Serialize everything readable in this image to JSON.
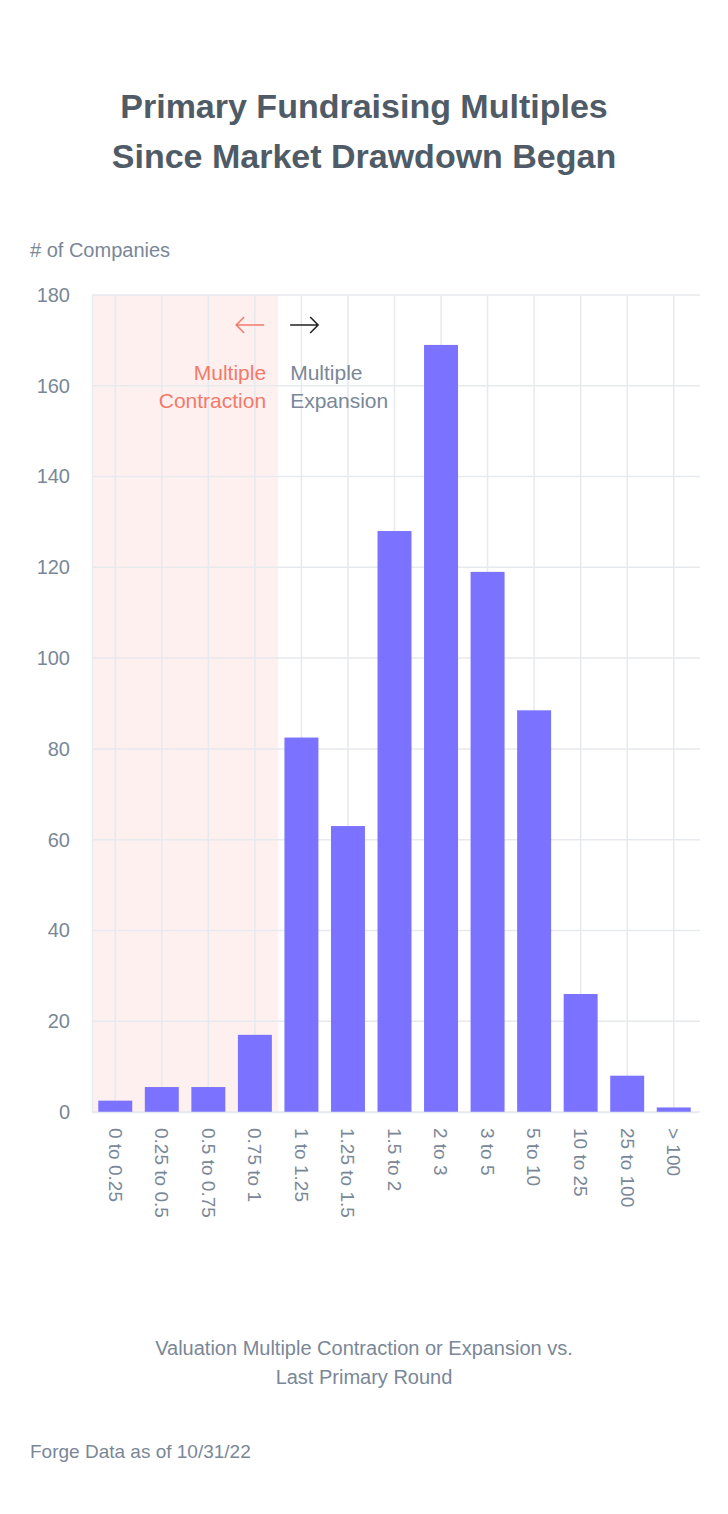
{
  "chart_data": {
    "type": "bar",
    "title": [
      "Primary Fundraising Multiples",
      "Since Market Drawdown Began"
    ],
    "y_label": "# of Companies",
    "x_label": [
      "Valuation Multiple Contraction or Expansion vs.",
      "Last Primary Round"
    ],
    "source": "Forge Data as of 10/31/22",
    "categories": [
      "0 to 0.25",
      "0.25 to 0.5",
      "0.5 to 0.75",
      "0.75 to 1",
      "1 to 1.25",
      "1.25 to 1.5",
      "1.5 to 2",
      "2 to 3",
      "3 to 5",
      "5 to 10",
      "10 to 25",
      "25 to 100",
      "> 100"
    ],
    "values": [
      2.5,
      5.5,
      5.5,
      17,
      82.5,
      63,
      128,
      169,
      119,
      88.5,
      26,
      8,
      1
    ],
    "color": "#7b73ff",
    "ylim": [
      0,
      180
    ],
    "yticks": [
      0,
      20,
      40,
      60,
      80,
      100,
      120,
      140,
      160,
      180
    ],
    "grid": true,
    "annotations": [
      {
        "text": [
          "Multiple",
          "Contraction"
        ],
        "color": "#f4796b",
        "from": "0 to 0.25",
        "to": "0.75 to 1"
      },
      {
        "text": [
          "Multiple",
          "Expansion"
        ],
        "color": "#7a8797"
      }
    ]
  }
}
